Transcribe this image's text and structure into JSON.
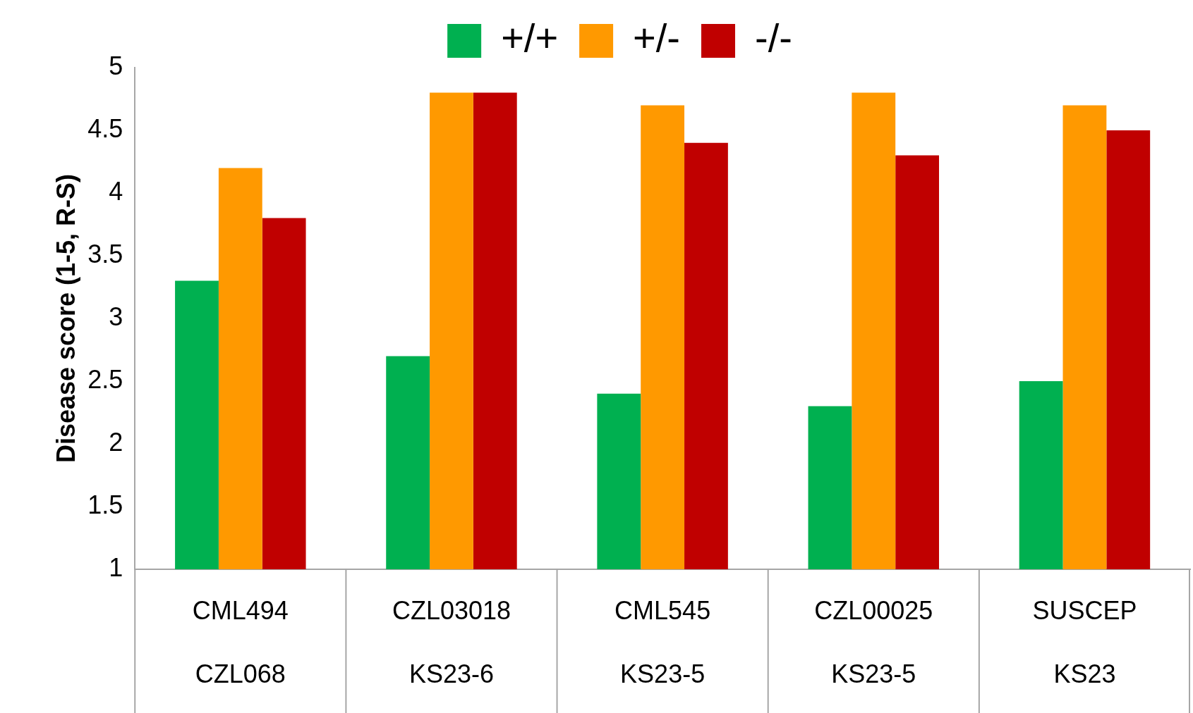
{
  "chart_data": {
    "type": "bar",
    "ylabel": "Disease score (1-5, R-S)",
    "categories": [
      "CML494\nCZL068",
      "CZL03018\nKS23-6",
      "CML545\nKS23-5",
      "CZL00025\nKS23-5",
      "SUSCEP\nKS23"
    ],
    "series": [
      {
        "name": "+/+",
        "color": "#00b050",
        "values": [
          3.3,
          2.7,
          2.4,
          2.3,
          2.5
        ]
      },
      {
        "name": "+/-",
        "color": "#ff9900",
        "values": [
          4.2,
          4.8,
          4.7,
          4.8,
          4.7
        ]
      },
      {
        "name": "-/-",
        "color": "#c00000",
        "values": [
          3.8,
          4.8,
          4.4,
          4.3,
          4.5
        ]
      }
    ],
    "ylim": [
      1,
      5
    ],
    "yticks": [
      1,
      1.5,
      2,
      2.5,
      3,
      3.5,
      4,
      4.5,
      5
    ],
    "legend": "top"
  }
}
